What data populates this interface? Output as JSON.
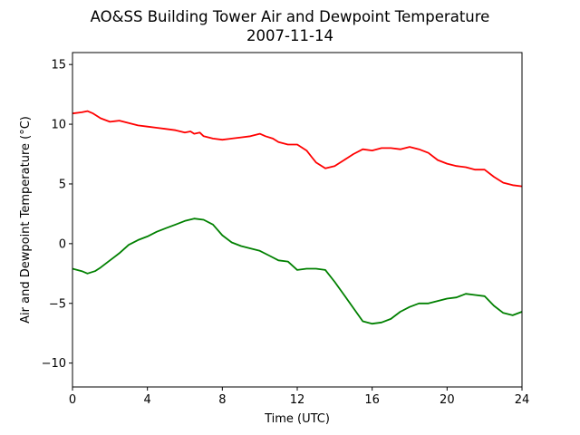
{
  "chart_data": {
    "type": "line",
    "title": "AO&SS Building Tower Air and Dewpoint Temperature",
    "subtitle": "2007-11-14",
    "xlabel": "Time (UTC)",
    "ylabel": "Air and Dewpoint Temperature (°C)",
    "xlim": [
      0,
      24
    ],
    "ylim": [
      -12,
      16
    ],
    "xticks": [
      0,
      4,
      8,
      12,
      16,
      20,
      24
    ],
    "yticks": [
      -10,
      -5,
      0,
      5,
      10,
      15
    ],
    "grid": false,
    "legend": "none",
    "series": [
      {
        "color": "#ff0000",
        "x": [
          0,
          0.5,
          0.8,
          1.1,
          1.5,
          2.0,
          2.5,
          3.0,
          3.5,
          4.0,
          4.5,
          5.0,
          5.5,
          6.0,
          6.3,
          6.5,
          6.8,
          7.0,
          7.5,
          8.0,
          8.5,
          9.0,
          9.5,
          10.0,
          10.3,
          10.7,
          11.0,
          11.5,
          12.0,
          12.5,
          12.8,
          13.0,
          13.5,
          14.0,
          14.5,
          15.0,
          15.5,
          16.0,
          16.5,
          17.0,
          17.5,
          18.0,
          18.5,
          19.0,
          19.5,
          20.0,
          20.5,
          21.0,
          21.5,
          22.0,
          22.5,
          23.0,
          23.5,
          24.0
        ],
        "values": [
          10.9,
          11.0,
          11.1,
          10.9,
          10.5,
          10.2,
          10.3,
          10.1,
          9.9,
          9.8,
          9.7,
          9.6,
          9.5,
          9.3,
          9.4,
          9.2,
          9.3,
          9.0,
          8.8,
          8.7,
          8.8,
          8.9,
          9.0,
          9.2,
          9.0,
          8.8,
          8.5,
          8.3,
          8.3,
          7.8,
          7.2,
          6.8,
          6.3,
          6.5,
          7.0,
          7.5,
          7.9,
          7.8,
          8.0,
          8.0,
          7.9,
          8.1,
          7.9,
          7.6,
          7.0,
          6.7,
          6.5,
          6.4,
          6.2,
          6.2,
          5.6,
          5.1,
          4.9,
          4.8
        ]
      },
      {
        "color": "#008000",
        "x": [
          0,
          0.5,
          0.8,
          1.2,
          1.5,
          2.0,
          2.5,
          3.0,
          3.5,
          4.0,
          4.5,
          5.0,
          5.5,
          6.0,
          6.5,
          7.0,
          7.5,
          8.0,
          8.5,
          9.0,
          9.5,
          10.0,
          10.5,
          11.0,
          11.5,
          12.0,
          12.5,
          13.0,
          13.5,
          14.0,
          14.5,
          15.0,
          15.5,
          16.0,
          16.5,
          17.0,
          17.5,
          18.0,
          18.5,
          19.0,
          19.5,
          20.0,
          20.5,
          21.0,
          21.5,
          22.0,
          22.5,
          23.0,
          23.5,
          24.0
        ],
        "values": [
          -2.1,
          -2.3,
          -2.5,
          -2.3,
          -2.0,
          -1.4,
          -0.8,
          -0.1,
          0.3,
          0.6,
          1.0,
          1.3,
          1.6,
          1.9,
          2.1,
          2.0,
          1.6,
          0.7,
          0.1,
          -0.2,
          -0.4,
          -0.6,
          -1.0,
          -1.4,
          -1.5,
          -2.2,
          -2.1,
          -2.1,
          -2.2,
          -3.2,
          -4.3,
          -5.4,
          -6.5,
          -6.7,
          -6.6,
          -6.3,
          -5.7,
          -5.3,
          -5.0,
          -5.0,
          -4.8,
          -4.6,
          -4.5,
          -4.2,
          -4.3,
          -4.4,
          -5.2,
          -5.8,
          -6.0,
          -5.7
        ]
      }
    ]
  }
}
